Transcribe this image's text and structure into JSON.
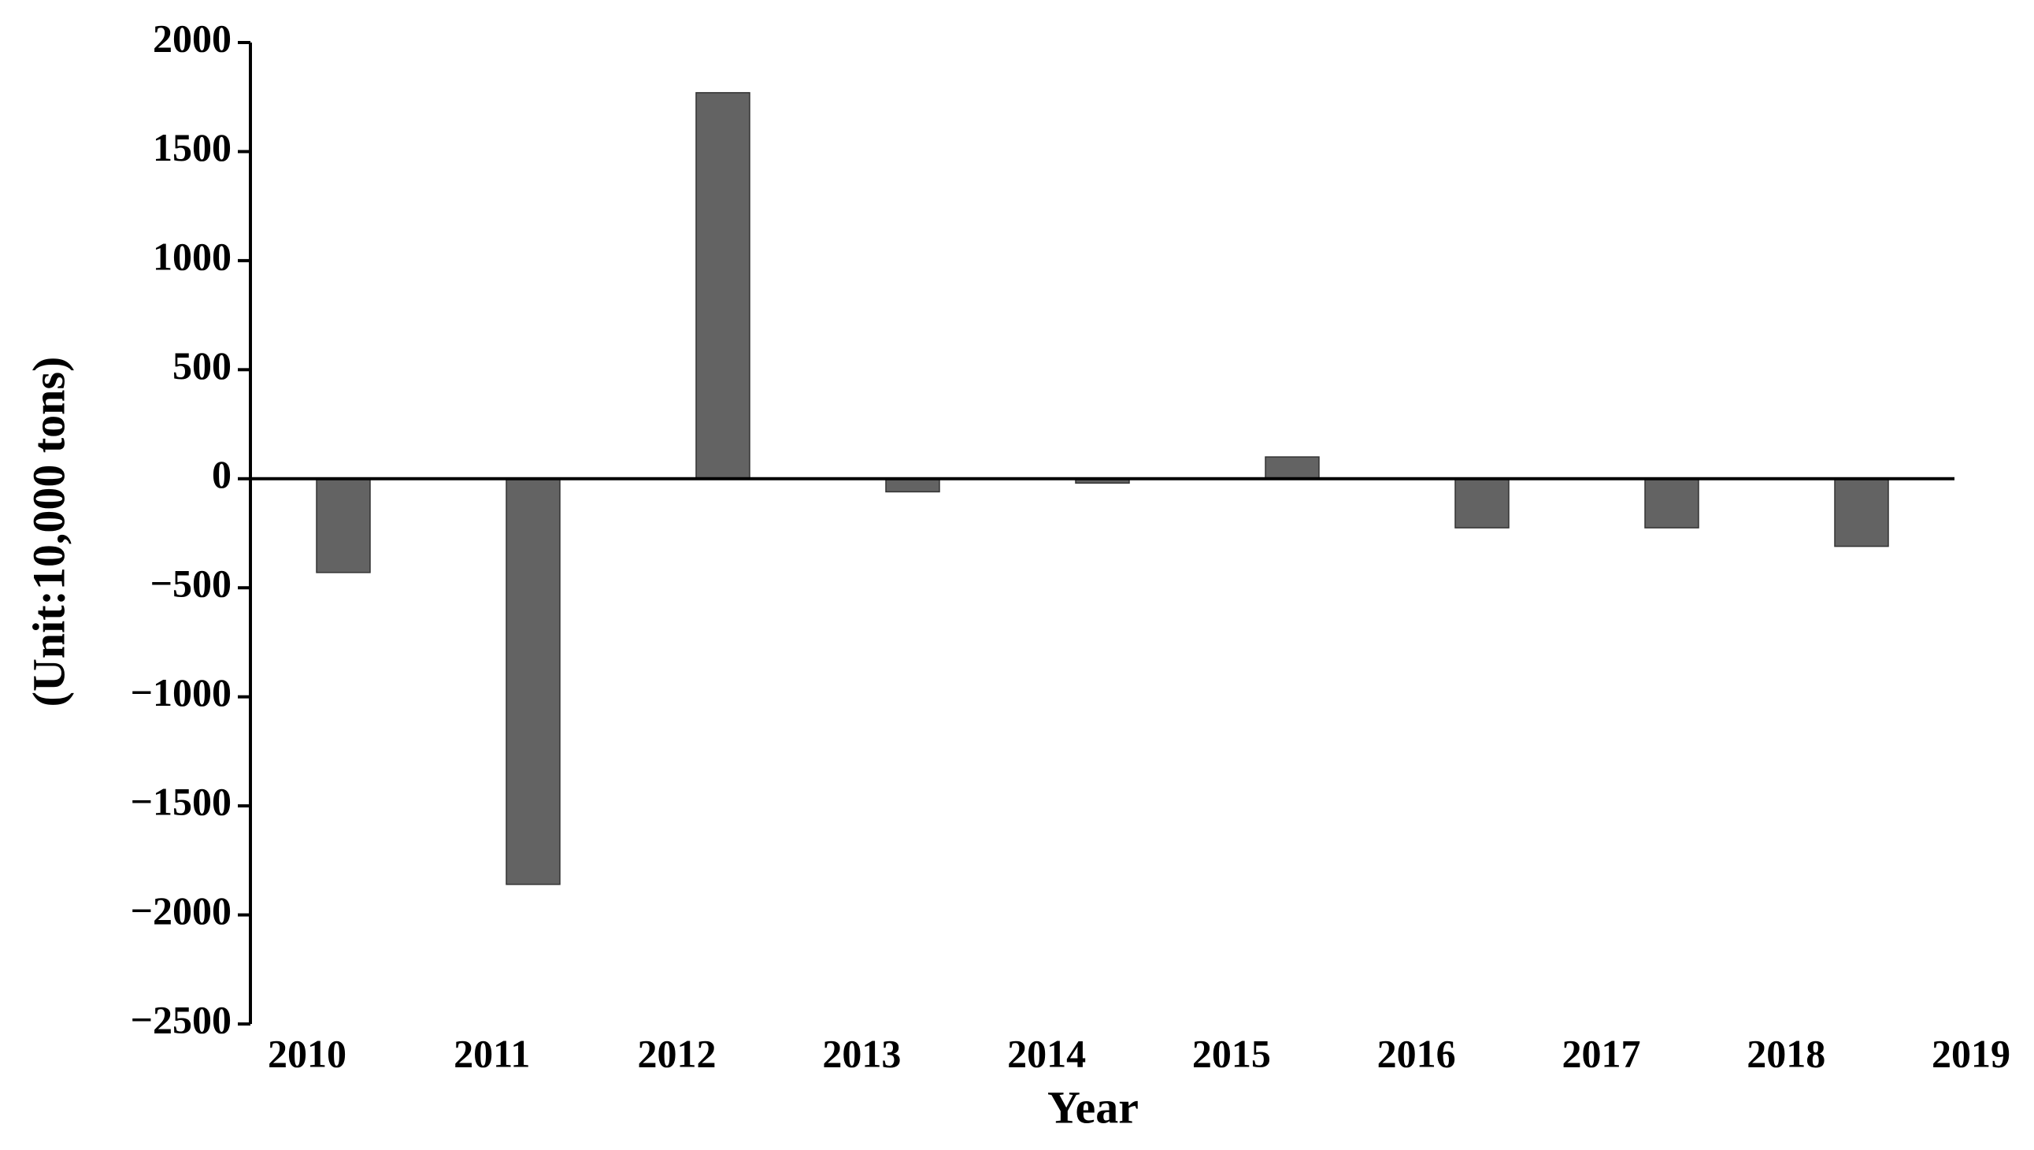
{
  "chart_data": {
    "type": "bar",
    "x_label": "Year",
    "y_label": "(Unit:10,000 tons)",
    "categories": [
      "2010",
      "2011",
      "2012",
      "2013",
      "2014",
      "2015",
      "2016",
      "2017",
      "2018",
      "2019"
    ],
    "values": [
      -430,
      -1860,
      1770,
      -60,
      -20,
      100,
      -225,
      -225,
      -310,
      null
    ],
    "color": "#636363",
    "ylim": [
      -2500,
      2000
    ],
    "yticks": [
      2000,
      1500,
      1000,
      500,
      0,
      {
        "value": -500,
        "label": "−500"
      },
      {
        "value": -1000,
        "label": "−1000"
      },
      {
        "value": -1500,
        "label": "−1500"
      },
      {
        "value": -2000,
        "label": "−2000"
      },
      {
        "value": -2500,
        "label": "−2500"
      }
    ],
    "grid": false
  }
}
